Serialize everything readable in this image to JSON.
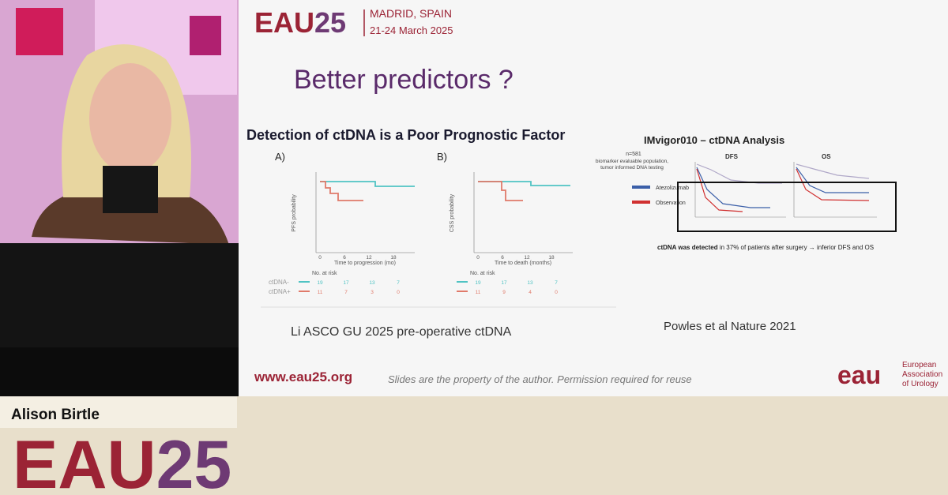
{
  "slide": {
    "header": {
      "brand_eau": "EAU",
      "brand_num": "25",
      "city": "MADRID, SPAIN",
      "dates": "21-24 March 2025"
    },
    "title": "Better predictors ?",
    "left_panel": {
      "heading": "Detection of ctDNA is a Poor Prognostic Factor",
      "plot_a": {
        "label": "A)",
        "y_label": "PFS probability",
        "x_label": "Time to progression (mo)",
        "x_ticks": [
          "0",
          "6",
          "12",
          "18"
        ],
        "risk_title": "No. at risk",
        "rows": [
          {
            "name": "ctDNA-",
            "counts": [
              "19",
              "17",
              "13",
              "7"
            ]
          },
          {
            "name": "ctDNA+",
            "counts": [
              "11",
              "7",
              "3",
              "0"
            ]
          }
        ]
      },
      "plot_b": {
        "label": "B)",
        "y_label": "CSS probability",
        "x_label": "Time to death (months)",
        "x_ticks": [
          "0",
          "6",
          "12",
          "18"
        ],
        "risk_title": "No. at risk",
        "rows": [
          {
            "counts": [
              "19",
              "17",
              "13",
              "7"
            ]
          },
          {
            "counts": [
              "11",
              "9",
              "4",
              "0"
            ]
          }
        ]
      }
    },
    "left_caption": "Li ASCO GU 2025 pre-operative ctDNA",
    "right_panel": {
      "heading": "IMvigor010 – ctDNA Analysis",
      "n": "n=581",
      "note_lines": [
        "biomarker evaluable population,",
        "tumor informed DNA testing"
      ],
      "legend": [
        "Atezolizumab",
        "Observation"
      ],
      "dfs": "DFS",
      "os": "OS",
      "footer_bold": "ctDNA was detected",
      "footer_rest": " in 37% of patients after surgery → inferior DFS and OS"
    },
    "right_caption": "Powles et al Nature 2021",
    "footer": {
      "url": "www.eau25.org",
      "disclaimer": "Slides are the property of the author. Permission required for reuse",
      "logo": "eau",
      "org_lines": [
        "European",
        "Association",
        "of Urology"
      ]
    }
  },
  "lower_third": {
    "speaker": "Alison Birtle",
    "brand_eau": "EAU",
    "brand_num": "25"
  }
}
